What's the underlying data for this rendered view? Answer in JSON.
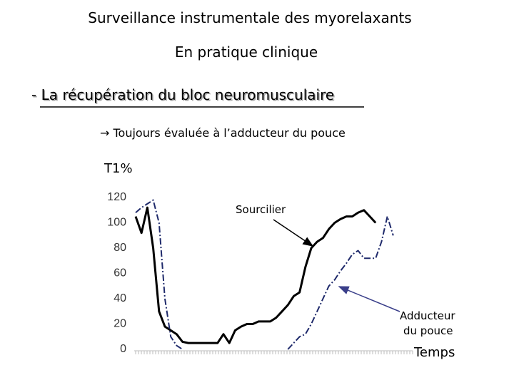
{
  "title": "Surveillance instrumentale des myorelaxants",
  "subtitle": "En pratique clinique",
  "heading": "- La récupération du bloc neuromusculaire",
  "bullet": "→ Toujours évaluée à l’adducteur du pouce",
  "chart_data": {
    "type": "line",
    "y_label": "T1%",
    "x_label": "Temps",
    "annotations": [
      {
        "lines": [
          "Sourcilier"
        ]
      },
      {
        "lines": [
          "Adducteur",
          "du pouce"
        ]
      }
    ],
    "categories": [
      null,
      null,
      null,
      null,
      null,
      null,
      null,
      null,
      null,
      null,
      null,
      null,
      null,
      null,
      null,
      null,
      null,
      null,
      null,
      null,
      null,
      null,
      null,
      null,
      null,
      null,
      null,
      null,
      null,
      null,
      null,
      null,
      null,
      null,
      null,
      null,
      null,
      null,
      null,
      null,
      null,
      null,
      null,
      null,
      null
    ],
    "series": [
      {
        "name": "Sourcilier",
        "color": "#000000",
        "dash": false,
        "values": [
          105,
          92,
          112,
          80,
          30,
          18,
          15,
          12,
          6,
          5,
          5,
          5,
          5,
          5,
          5,
          12,
          5,
          15,
          18,
          20,
          20,
          22,
          22,
          22,
          25,
          30,
          35,
          42,
          45,
          65,
          80,
          85,
          88,
          95,
          100,
          103,
          105,
          105,
          108,
          110,
          105,
          100,
          null,
          null,
          null
        ]
      },
      {
        "name": "Adducteur du pouce",
        "color": "#1f2a6b",
        "dash": true,
        "values": [
          108,
          112,
          115,
          118,
          100,
          40,
          10,
          3,
          0,
          null,
          null,
          null,
          null,
          null,
          null,
          null,
          null,
          null,
          null,
          null,
          null,
          null,
          null,
          null,
          null,
          null,
          0,
          5,
          10,
          12,
          20,
          30,
          40,
          50,
          55,
          62,
          68,
          75,
          78,
          72,
          72,
          72,
          85,
          105,
          90
        ]
      }
    ],
    "ylim": [
      0,
      120
    ],
    "yticks": [
      0,
      20,
      40,
      60,
      80,
      100,
      120
    ],
    "grid": false
  }
}
